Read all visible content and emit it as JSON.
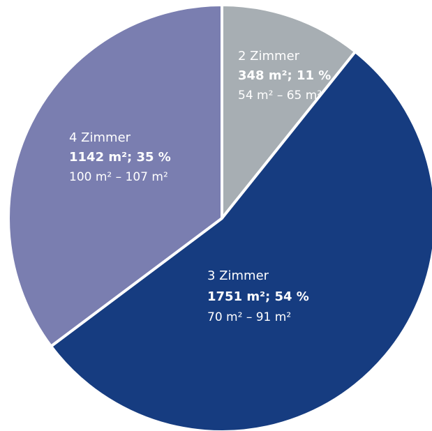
{
  "chart_data": {
    "type": "pie",
    "title": "",
    "start_angle_deg": 0,
    "direction": "clockwise",
    "slices": [
      {
        "name": "2 Zimmer",
        "value": 348,
        "area_label": "348 m²; 11 %",
        "range_label": "54 m² – 65 m²",
        "color": "#a7aeb3",
        "range_color": "#e7eaec"
      },
      {
        "name": "3 Zimmer",
        "value": 1751,
        "area_label": "1751 m²; 54 %",
        "range_label": "70 m² – 91 m²",
        "color": "#163c80",
        "range_color": "#d5dcec"
      },
      {
        "name": "4 Zimmer",
        "value": 1142,
        "area_label": "1142 m²; 35 %",
        "range_label": "100 m² – 107 m²",
        "color": "#7a7eb0",
        "range_color": "#e6e7f2"
      }
    ]
  }
}
